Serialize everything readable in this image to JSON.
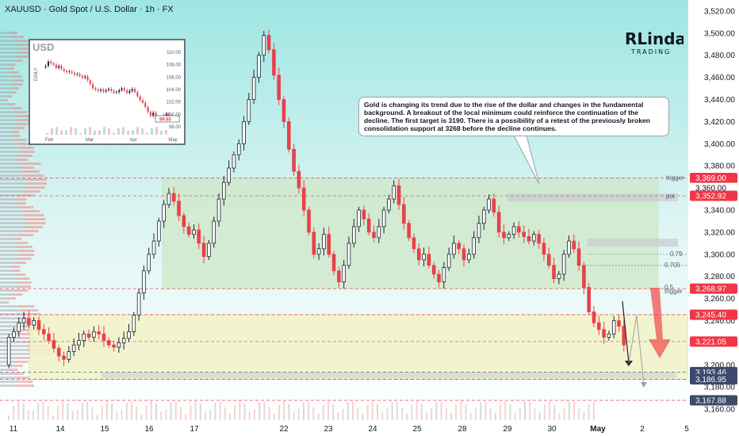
{
  "header": {
    "symbol_title": "XAUUSD · Gold Spot / U.S. Dollar · 1h · FX"
  },
  "logo": {
    "main": "RLinda",
    "sub": "TRADING"
  },
  "annotation": {
    "text": "Gold is changing its trend due to the rise of the dollar and changes in the fundamental background. A breakout of the local minimum could reinforce the continuation of the decline. The first target is 3190. There is a possibility of a retest of the previously broken consolidation support at 3268 before the decline continues."
  },
  "levels": {
    "trigger_top": "trigger",
    "poi": "poi",
    "fib_079": "0.79",
    "fib_0705": "0.705",
    "fib_05": "0.5",
    "trigger_low": "trigger"
  },
  "colors": {
    "bull": "#26a69a",
    "bear": "#ef5350",
    "candle_red": "#e8414b",
    "candle_dark": "#1e222d",
    "axis_red_tag": "#f23645",
    "axis_blue_tag": "#2962ff",
    "zone_green": "#cfe8c8",
    "zone_yellow": "#f3f3c8"
  },
  "price_tags": [
    {
      "value": 3369.0,
      "label": "3,369.00",
      "color": "#f23645"
    },
    {
      "value": 3360.0,
      "label": "3,360.00",
      "color": "#ffffff"
    },
    {
      "value": 3352.92,
      "label": "3,352.92",
      "color": "#f23645"
    },
    {
      "value": 3268.97,
      "label": "3,268.97",
      "color": "#f23645"
    },
    {
      "value": 3245.4,
      "label": "3,245.40",
      "color": "#f23645"
    },
    {
      "value": 3221.05,
      "label": "3,221.05",
      "color": "#f23645"
    },
    {
      "value": 3193.46,
      "label": "3,193.46",
      "color": "#3b4a6b"
    },
    {
      "value": 3186.95,
      "label": "3,186.95",
      "color": "#3b4a6b"
    },
    {
      "value": 3167.88,
      "label": "3,167.88",
      "color": "#3b4a6b"
    }
  ],
  "inset": {
    "label": "USD",
    "side_label": "DAILY",
    "y_ticks": [
      "110.00",
      "108.00",
      "106.00",
      "104.00",
      "102.00",
      "100.00",
      "98.00"
    ],
    "x_ticks": [
      "Feb",
      "Mar",
      "Apr",
      "May"
    ],
    "last_value_tag": "99.65"
  },
  "chart_data": {
    "type": "candlestick",
    "title": "XAUUSD · Gold Spot / U.S. Dollar · 1h · FX",
    "y_ticks": [
      "3,520.00",
      "3,500.00",
      "3,480.00",
      "3,460.00",
      "3,440.00",
      "3,420.00",
      "3,400.00",
      "3,380.00",
      "3,360.00",
      "3,340.00",
      "3,320.00",
      "3,300.00",
      "3,280.00",
      "3,260.00",
      "3,240.00",
      "3,220.00",
      "3,200.00",
      "3,180.00",
      "3,160.00"
    ],
    "x_ticks": [
      "11",
      "14",
      "15",
      "16",
      "17",
      "22",
      "23",
      "24",
      "25",
      "28",
      "29",
      "30",
      "May",
      "2",
      "5"
    ],
    "ylim": [
      3150,
      3530
    ],
    "zones": [
      {
        "name": "consolidation",
        "from": 3268.97,
        "to": 3369.0
      },
      {
        "name": "support range",
        "from": 3186.95,
        "to": 3245.4
      }
    ],
    "price_path_hourly_closes": [
      3225,
      3230,
      3238,
      3242,
      3236,
      3240,
      3232,
      3228,
      3222,
      3215,
      3208,
      3205,
      3212,
      3218,
      3222,
      3228,
      3225,
      3230,
      3228,
      3222,
      3218,
      3216,
      3220,
      3224,
      3230,
      3245,
      3265,
      3285,
      3300,
      3312,
      3330,
      3345,
      3355,
      3348,
      3335,
      3325,
      3318,
      3322,
      3310,
      3298,
      3310,
      3330,
      3350,
      3365,
      3378,
      3390,
      3400,
      3420,
      3440,
      3460,
      3480,
      3498,
      3485,
      3462,
      3440,
      3420,
      3395,
      3375,
      3360,
      3340,
      3320,
      3300,
      3305,
      3318,
      3300,
      3285,
      3275,
      3290,
      3310,
      3325,
      3340,
      3332,
      3320,
      3315,
      3325,
      3340,
      3350,
      3362,
      3345,
      3328,
      3315,
      3305,
      3295,
      3300,
      3290,
      3282,
      3275,
      3288,
      3300,
      3310,
      3305,
      3295,
      3300,
      3315,
      3328,
      3340,
      3350,
      3338,
      3320,
      3315,
      3318,
      3325,
      3320,
      3316,
      3312,
      3318,
      3310,
      3300,
      3290,
      3278,
      3282,
      3300,
      3312,
      3305,
      3290,
      3270,
      3248,
      3238,
      3232,
      3225,
      3228,
      3240,
      3235,
      3218
    ]
  }
}
